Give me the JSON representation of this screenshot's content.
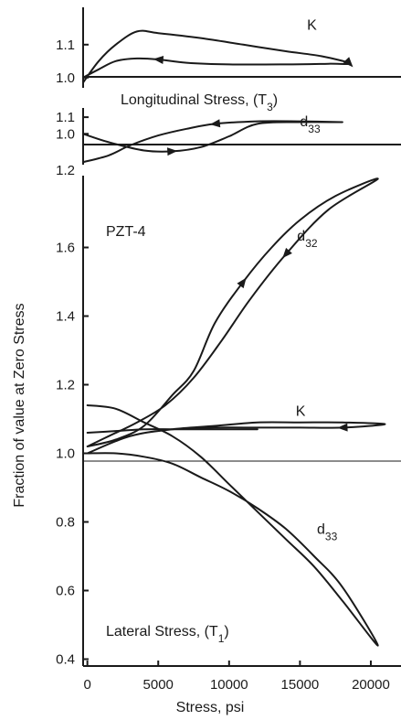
{
  "chart_data": [
    {
      "panel": "top",
      "type": "line",
      "title": "Longitudinal Stress, (T3)",
      "title_main": "Longitudinal Stress, (T",
      "title_sub": "3",
      "title_close": ")",
      "ylim": [
        0.98,
        1.18
      ],
      "xlim": [
        -300,
        22000
      ],
      "y_ticks": [
        1.0,
        1.1
      ],
      "y_tick_labels": [
        "1.0",
        "1.1"
      ],
      "reference_line": 1.0,
      "series": [
        {
          "name": "K",
          "name_sub": "",
          "label_at": [
            15500,
            1.145
          ],
          "x": [
            -300,
            800,
            2000,
            3500,
            5000,
            8000,
            11000,
            14000,
            16500,
            18500,
            17000,
            14000,
            10000,
            7000,
            5000,
            3500,
            2000,
            800,
            -300
          ],
          "y": [
            0.985,
            1.05,
            1.1,
            1.14,
            1.135,
            1.12,
            1.1,
            1.08,
            1.065,
            1.043,
            1.042,
            1.04,
            1.04,
            1.045,
            1.055,
            1.058,
            1.05,
            1.025,
            1.0
          ],
          "arrows": [
            {
              "at": 9,
              "dir": "fwd"
            },
            {
              "at": 14,
              "dir": "fwd"
            }
          ]
        }
      ]
    },
    {
      "panel": "middle",
      "type": "line",
      "ylim": [
        0.82,
        1.15
      ],
      "xlim": [
        -300,
        22000
      ],
      "y_ticks": [
        1.0,
        1.1
      ],
      "y_tick_labels": [
        "1.0",
        "1.1"
      ],
      "reference_line": 1.0,
      "series": [
        {
          "name": "d",
          "name_sub": "33",
          "label_at": [
            15000,
            1.045
          ],
          "x": [
            -300,
            1500,
            4000,
            6000,
            8000,
            10000,
            12000,
            15000,
            18000,
            15000,
            12000,
            9000,
            7000,
            5000,
            3000,
            1500,
            -300
          ],
          "y": [
            1.0,
            0.95,
            0.9,
            0.895,
            0.92,
            0.985,
            1.06,
            1.07,
            1.07,
            1.075,
            1.075,
            1.06,
            1.03,
            0.99,
            0.93,
            0.87,
            0.83
          ],
          "arrows": [
            {
              "at": 3,
              "dir": "fwd"
            },
            {
              "at": 11,
              "dir": "fwd"
            }
          ]
        }
      ]
    },
    {
      "panel": "bottom",
      "type": "line",
      "title": "PZT-4",
      "annotation_main": "Lateral Stress, (T",
      "annotation_sub": "1",
      "annotation_close": ")",
      "xlabel": "Stress, psi",
      "ylabel": "Fraction of value at Zero Stress",
      "xlim": [
        -300,
        22000
      ],
      "ylim": [
        0.38,
        1.82
      ],
      "x_ticks": [
        0,
        5000,
        10000,
        15000,
        20000
      ],
      "x_tick_labels": [
        "0",
        "5000",
        "10000",
        "15000",
        "20000"
      ],
      "y_ticks": [
        0.4,
        0.6,
        0.8,
        1.0,
        1.2,
        1.4,
        1.6
      ],
      "y_tick_labels": [
        "0.4",
        "0.6",
        "0.8",
        "1.0",
        "1.2",
        "1.4",
        "1.6"
      ],
      "y_top_label": "1.2",
      "reference_line": 1.0,
      "series": [
        {
          "name": "d",
          "name_sub": "32",
          "label_at": [
            14800,
            1.62
          ],
          "x": [
            0,
            2000,
            4000,
            6000,
            7500,
            9000,
            11000,
            13000,
            15000,
            17500,
            20500,
            17000,
            14000,
            11500,
            9500,
            7500,
            5500,
            3500,
            1500,
            0
          ],
          "y": [
            1.02,
            1.04,
            1.08,
            1.17,
            1.24,
            1.38,
            1.5,
            1.6,
            1.68,
            1.75,
            1.8,
            1.71,
            1.58,
            1.45,
            1.33,
            1.22,
            1.14,
            1.09,
            1.05,
            1.02
          ],
          "arrows": [
            {
              "at": 6,
              "dir": "fwd"
            },
            {
              "at": 12,
              "dir": "fwd"
            }
          ]
        },
        {
          "name": "K",
          "name_sub": "",
          "label_at": [
            14700,
            1.11
          ],
          "x": [
            0,
            3000,
            6000,
            9000,
            12000,
            15000,
            18000,
            21000,
            18000,
            15000,
            12000,
            9000,
            6000,
            3000,
            0
          ],
          "y": [
            1.0,
            1.05,
            1.07,
            1.08,
            1.09,
            1.09,
            1.09,
            1.085,
            1.075,
            1.075,
            1.075,
            1.075,
            1.07,
            1.05,
            1.0
          ],
          "arrows": [
            {
              "at": 8,
              "dir": "fwd"
            }
          ]
        },
        {
          "name": "d",
          "name_sub": "33",
          "label_at": [
            16200,
            0.765
          ],
          "x": [
            0,
            2000,
            4000,
            6000,
            8000,
            10000,
            12000,
            14000,
            16000,
            18000,
            20500,
            18000,
            16000,
            14000,
            12000,
            10000,
            8000,
            6000,
            4000,
            2000,
            0
          ],
          "y": [
            1.0,
            1.0,
            0.99,
            0.97,
            0.93,
            0.89,
            0.84,
            0.78,
            0.7,
            0.61,
            0.44,
            0.57,
            0.67,
            0.75,
            0.83,
            0.91,
            0.99,
            1.05,
            1.09,
            1.13,
            1.14
          ],
          "arrows": []
        },
        {
          "name": "",
          "name_sub": "",
          "x": [
            0,
            2000,
            4000,
            6000,
            8000,
            10000,
            12000
          ],
          "y": [
            1.06,
            1.065,
            1.07,
            1.07,
            1.07,
            1.07,
            1.07
          ],
          "arrows": []
        }
      ]
    }
  ]
}
